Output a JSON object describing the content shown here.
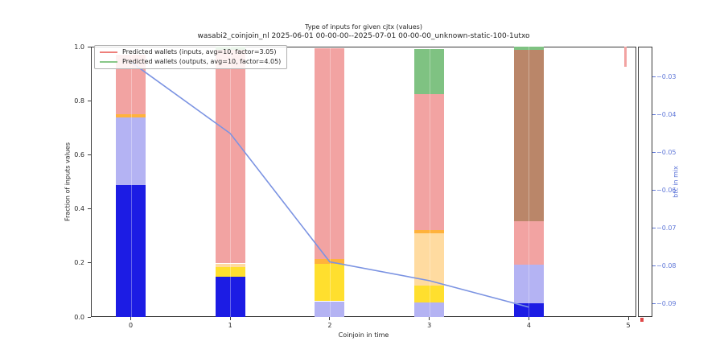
{
  "figure": {
    "background": "#ffffff"
  },
  "chart_data": {
    "type": "bar",
    "title": "Type of inputs for given cjtx (values)",
    "subtitle": "wasabi2_coinjoin_nl 2025-06-01 00-00-00--2025-07-01 00-00-00_unknown-static-100-1utxo",
    "xlabel": "Coinjoin in time",
    "ylabel": "Fraction of inputs values",
    "right_axis_label": "btc in mix",
    "xlim": [
      -0.4,
      5.08
    ],
    "ylim": [
      0,
      1
    ],
    "right_ylim": [
      -0.0936,
      -0.022
    ],
    "x_ticks": [
      {
        "value": 0,
        "label": "0"
      },
      {
        "value": 1,
        "label": "1"
      },
      {
        "value": 2,
        "label": "2"
      },
      {
        "value": 3,
        "label": "3"
      },
      {
        "value": 4,
        "label": "4"
      },
      {
        "value": 5,
        "label": "5"
      }
    ],
    "y_ticks": [
      {
        "value": 0.0,
        "label": "0.0"
      },
      {
        "value": 0.2,
        "label": "0.2"
      },
      {
        "value": 0.4,
        "label": "0.4"
      },
      {
        "value": 0.6,
        "label": "0.6"
      },
      {
        "value": 0.8,
        "label": "0.8"
      },
      {
        "value": 1.0,
        "label": "1.0"
      }
    ],
    "right_ticks": [
      {
        "value": -0.03,
        "label": "−0.03"
      },
      {
        "value": -0.04,
        "label": "−0.04"
      },
      {
        "value": -0.05,
        "label": "−0.05"
      },
      {
        "value": -0.06,
        "label": "−0.06"
      },
      {
        "value": -0.07,
        "label": "−0.07"
      },
      {
        "value": -0.08,
        "label": "−0.08"
      },
      {
        "value": -0.09,
        "label": "−0.09"
      }
    ],
    "colors": {
      "blue": "#1c1ce4",
      "lavender": "#b4b3f3",
      "yellow": "#ffdf2e",
      "wheat": "#ffdba0",
      "orange": "#ffb23c",
      "pink": "#f2a3a2",
      "green": "#7fc282",
      "brown": "#ba8669",
      "line": "#7b93e2",
      "right_axis_text": "#5f77d8",
      "axis": "#3a3a3a",
      "bottom_marker": "#e04848"
    },
    "bars": [
      {
        "x": 0,
        "width": 0.3,
        "segments": [
          [
            "blue",
            0,
            0.488
          ],
          [
            "lavender",
            0.488,
            0.738
          ],
          [
            "orange",
            0.738,
            0.75
          ],
          [
            "pink",
            0.75,
            0.97
          ]
        ]
      },
      {
        "x": 1,
        "width": 0.3,
        "segments": [
          [
            "blue",
            0,
            0.15
          ],
          [
            "yellow",
            0.15,
            0.185
          ],
          [
            "wheat",
            0.185,
            0.198
          ],
          [
            "pink",
            0.198,
            0.988
          ],
          [
            "green",
            0.988,
            1.0
          ]
        ]
      },
      {
        "x": 2,
        "width": 0.3,
        "segments": [
          [
            "lavender",
            0,
            0.058
          ],
          [
            "yellow",
            0.058,
            0.196
          ],
          [
            "orange",
            0.196,
            0.214
          ],
          [
            "pink",
            0.214,
            0.994
          ]
        ]
      },
      {
        "x": 3,
        "width": 0.3,
        "segments": [
          [
            "lavender",
            0,
            0.054
          ],
          [
            "yellow",
            0.054,
            0.116
          ],
          [
            "wheat",
            0.116,
            0.31
          ],
          [
            "orange",
            0.31,
            0.322
          ],
          [
            "pink",
            0.322,
            0.824
          ],
          [
            "green",
            0.824,
            0.992
          ]
        ]
      },
      {
        "x": 4,
        "width": 0.3,
        "segments": [
          [
            "blue",
            0,
            0.05
          ],
          [
            "lavender",
            0.05,
            0.193
          ],
          [
            "pink",
            0.193,
            0.354
          ],
          [
            "brown",
            0.354,
            0.988
          ],
          [
            "green",
            0.988,
            0.999
          ]
        ]
      },
      {
        "x": 4.97,
        "width": 0.022,
        "segments": [
          [
            "pink",
            0.925,
            1.0
          ]
        ]
      }
    ],
    "line": {
      "x": [
        0,
        1,
        2,
        3,
        4
      ],
      "values": [
        -0.026,
        -0.045,
        -0.079,
        -0.084,
        -0.091
      ]
    },
    "legend": [
      {
        "label": "Predicted wallets (inputs, avg=10, factor=3.05)",
        "color": "#ee7f7a"
      },
      {
        "label": "Predicted wallets (outputs, avg=10, factor=4.05)",
        "color": "#88c788"
      }
    ]
  }
}
